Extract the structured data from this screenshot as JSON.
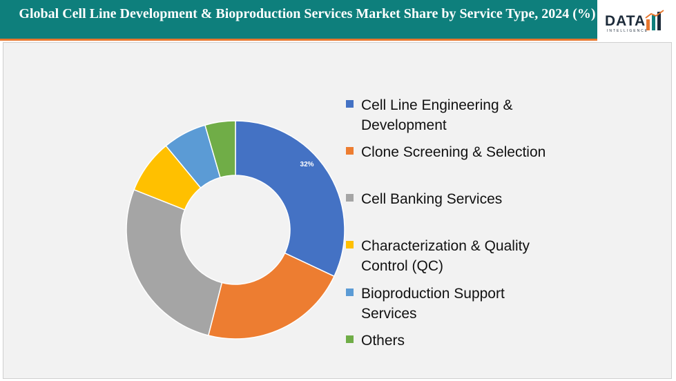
{
  "header": {
    "title": "Global Cell Line Development & Bioproduction Services Market Share by Service Type, 2024 (%)"
  },
  "logo": {
    "word": "DATA",
    "sub": "INTELLIGENCE"
  },
  "colors": {
    "header_bg": "#0e7f7c",
    "header_accent": "#e8772e",
    "plot_bg": "#f2f2f2"
  },
  "chart_data": {
    "type": "donut",
    "title": "Global Cell Line Development & Bioproduction Services Market Share by Service Type, 2024 (%)",
    "unit": "%",
    "legend_position": "right",
    "series": [
      {
        "name": "Cell Line Engineering & Development",
        "value": 32,
        "color": "#4472c4",
        "label": "32%"
      },
      {
        "name": "Clone Screening & Selection",
        "value": 22,
        "color": "#ed7d31",
        "label": ""
      },
      {
        "name": "Cell Banking Services",
        "value": 27,
        "color": "#a5a5a5",
        "label": ""
      },
      {
        "name": "Characterization & Quality Control (QC)",
        "value": 8,
        "color": "#ffc000",
        "label": ""
      },
      {
        "name": "Bioproduction Support Services",
        "value": 6.5,
        "color": "#5b9bd5",
        "label": ""
      },
      {
        "name": "Others",
        "value": 4.5,
        "color": "#70ad47",
        "label": ""
      }
    ]
  }
}
